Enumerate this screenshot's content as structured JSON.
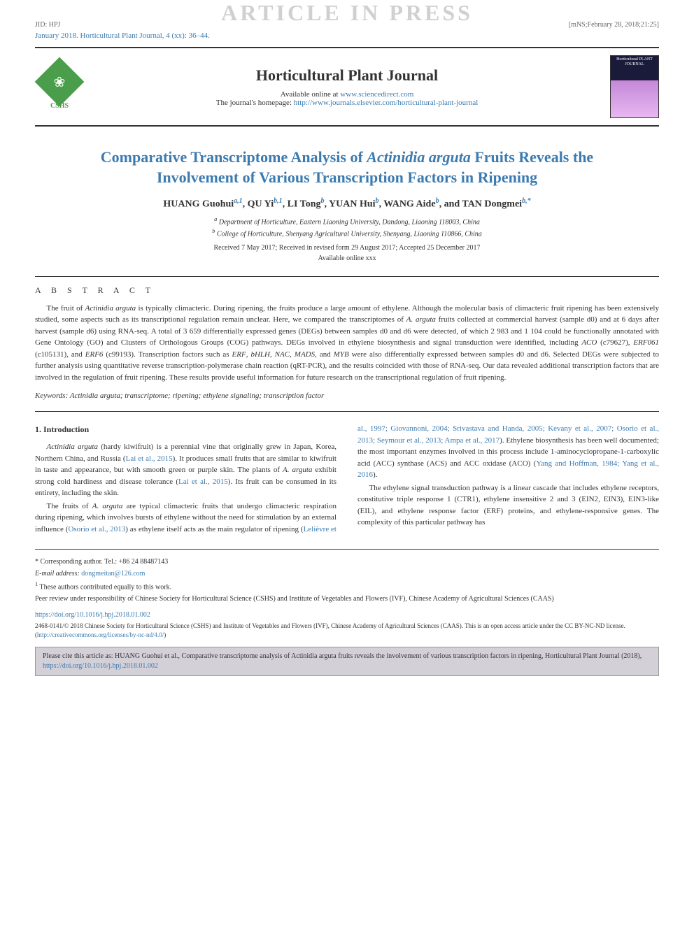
{
  "watermark": "ARTICLE IN PRESS",
  "top_meta": {
    "left": "JID: HPJ",
    "right": "[mNS;February 28, 2018;21:25]"
  },
  "citation_line": "January 2018. Horticultural Plant Journal, 4 (xx): 36–44.",
  "header": {
    "logo_label": "CSHS",
    "journal_name": "Horticultural Plant Journal",
    "available_text": "Available online at ",
    "available_link": "www.sciencedirect.com",
    "homepage_text": "The journal's homepage: ",
    "homepage_link": "http://www.journals.elsevier.com/horticultural-plant-journal",
    "cover_text": "Horticultural PLANT JOURNAL"
  },
  "article": {
    "title_pre": "Comparative Transcriptome Analysis of ",
    "title_italic": "Actinidia arguta",
    "title_post": " Fruits Reveals the Involvement of Various Transcription Factors in Ripening",
    "authors_html": "HUANG Guohui",
    "authors": [
      {
        "name": "HUANG Guohui",
        "sup": "a,1"
      },
      {
        "name": "QU Yi",
        "sup": "b,1"
      },
      {
        "name": "LI Tong",
        "sup": "b"
      },
      {
        "name": "YUAN Hui",
        "sup": "b"
      },
      {
        "name": "WANG Aide",
        "sup": "b"
      },
      {
        "name": "TAN Dongmei",
        "sup": "b,*"
      }
    ],
    "affiliations": [
      {
        "sup": "a",
        "text": "Department of Horticulture, Eastern Liaoning University, Dandong, Liaoning 118003, China"
      },
      {
        "sup": "b",
        "text": "College of Horticulture, Shenyang Agricultural University, Shenyang, Liaoning 110866, China"
      }
    ],
    "dates": "Received 7 May 2017; Received in revised form 29 August 2017; Accepted 25 December 2017",
    "online": "Available online xxx"
  },
  "abstract": {
    "heading": "A B S T R A C T",
    "text_parts": [
      {
        "t": "The fruit of ",
        "i": false
      },
      {
        "t": "Actinidia arguta",
        "i": true
      },
      {
        "t": " is typically climacteric. During ripening, the fruits produce a large amount of ethylene. Although the molecular basis of climacteric fruit ripening has been extensively studied, some aspects such as its transcriptional regulation remain unclear. Here, we compared the transcriptomes of ",
        "i": false
      },
      {
        "t": "A. arguta",
        "i": true
      },
      {
        "t": " fruits collected at commercial harvest (sample d0) and at 6 days after harvest (sample d6) using RNA-seq. A total of 3 659 differentially expressed genes (DEGs) between samples d0 and d6 were detected, of which 2 983 and 1 104 could be functionally annotated with Gene Ontology (GO) and Clusters of Orthologous Groups (COG) pathways. DEGs involved in ethylene biosynthesis and signal transduction were identified, including ",
        "i": false
      },
      {
        "t": "ACO",
        "i": true
      },
      {
        "t": " (c79627), ",
        "i": false
      },
      {
        "t": "ERF061",
        "i": true
      },
      {
        "t": " (c105131), and ",
        "i": false
      },
      {
        "t": "ERF6",
        "i": true
      },
      {
        "t": " (c99193). Transcription factors such as ",
        "i": false
      },
      {
        "t": "ERF",
        "i": true
      },
      {
        "t": ", ",
        "i": false
      },
      {
        "t": "bHLH",
        "i": true
      },
      {
        "t": ", ",
        "i": false
      },
      {
        "t": "NAC",
        "i": true
      },
      {
        "t": ", ",
        "i": false
      },
      {
        "t": "MADS",
        "i": true
      },
      {
        "t": ", and ",
        "i": false
      },
      {
        "t": "MYB",
        "i": true
      },
      {
        "t": " were also differentially expressed between samples d0 and d6. Selected DEGs were subjected to further analysis using quantitative reverse transcription-polymerase chain reaction (qRT-PCR), and the results coincided with those of RNA-seq. Our data revealed additional transcription factors that are involved in the regulation of fruit ripening. These results provide useful information for future research on the transcriptional regulation of fruit ripening.",
        "i": false
      }
    ],
    "keywords_label": "Keywords: ",
    "keywords": "Actinidia arguta; transcriptome; ripening; ethylene signaling; transcription factor"
  },
  "intro": {
    "heading": "1. Introduction",
    "para1_parts": [
      {
        "t": "Actinidia arguta",
        "i": true,
        "link": false
      },
      {
        "t": " (hardy kiwifruit) is a perennial vine that originally grew in Japan, Korea, Northern China, and Russia (",
        "i": false,
        "link": false
      },
      {
        "t": "Lai et al., 2015",
        "i": false,
        "link": true
      },
      {
        "t": "). It produces small fruits that are similar to kiwifruit in taste and appearance, but with smooth green or purple skin. The plants of ",
        "i": false,
        "link": false
      },
      {
        "t": "A. arguta",
        "i": true,
        "link": false
      },
      {
        "t": " exhibit strong cold hardiness and disease tolerance (",
        "i": false,
        "link": false
      },
      {
        "t": "Lai et al., 2015",
        "i": false,
        "link": true
      },
      {
        "t": "). Its fruit can be consumed in its entirety, including the skin.",
        "i": false,
        "link": false
      }
    ],
    "para2_parts": [
      {
        "t": "The fruits of ",
        "i": false,
        "link": false
      },
      {
        "t": "A. arguta",
        "i": true,
        "link": false
      },
      {
        "t": " are typical climacteric fruits that undergo climacteric respiration during ripening, which involves bursts of ethylene without the need for stimulation by an external influence (",
        "i": false,
        "link": false
      },
      {
        "t": "Osorio et al., 2013",
        "i": false,
        "link": true
      },
      {
        "t": ") as ethylene itself acts as the main regulator of ripening (",
        "i": false,
        "link": false
      },
      {
        "t": "Lelièvre et al., 1997; Giovannoni, 2004; Srivastava and Handa, 2005; Kevany et al., 2007; Osorio et al., 2013; Seymour et al., 2013; Ampa et al., 2017",
        "i": false,
        "link": true
      },
      {
        "t": "). Ethylene biosynthesis has been well documented; the most important enzymes involved in this process include 1-aminocyclopropane-1-carboxylic acid (ACC) synthase (ACS) and ACC oxidase (ACO) (",
        "i": false,
        "link": false
      },
      {
        "t": "Yang and Hoffman, 1984; Yang et al., 2016",
        "i": false,
        "link": true
      },
      {
        "t": ").",
        "i": false,
        "link": false
      }
    ],
    "para3": "The ethylene signal transduction pathway is a linear cascade that includes ethylene receptors, constitutive triple response 1 (CTR1), ethylene insensitive 2 and 3 (EIN2, EIN3), EIN3-like (EIL), and ethylene response factor (ERF) proteins, and ethylene-responsive genes. The complexity of this particular pathway has"
  },
  "footnotes": {
    "corresponding": "* Corresponding author. Tel.: +86 24 88487143",
    "email_label": "E-mail address: ",
    "email": "dongmeitan@126.com",
    "equal": "These authors contributed equally to this work.",
    "equal_sup": "1",
    "peer_review": "Peer review under responsibility of Chinese Society for Horticultural Science (CSHS) and Institute of Vegetables and Flowers (IVF), Chinese Academy of Agricultural Sciences (CAAS)"
  },
  "doi": "https://doi.org/10.1016/j.hpj.2018.01.002",
  "copyright": {
    "text": "2468-0141/© 2018 Chinese Society for Horticultural Science (CSHS) and Institute of Vegetables and Flowers (IVF), Chinese Academy of Agricultural Sciences (CAAS). This is an open access article under the CC BY-NC-ND license. (",
    "link": "http://creativecommons.org/licenses/by-nc-nd/4.0/",
    "close": ")"
  },
  "cite_box": {
    "text": "Please cite this article as: HUANG Guohui et al., Comparative transcriptome analysis of Actinidia arguta fruits reveals the involvement of various transcription factors in ripening, Horticultural Plant Journal (2018), ",
    "link": "https://doi.org/10.1016/j.hpj.2018.01.002"
  },
  "colors": {
    "link": "#3b7bb0",
    "title": "#3b7bb0",
    "logo_green": "#4a9d4a",
    "watermark": "#d0d0d0",
    "citebox_bg": "#d4d0d8"
  }
}
